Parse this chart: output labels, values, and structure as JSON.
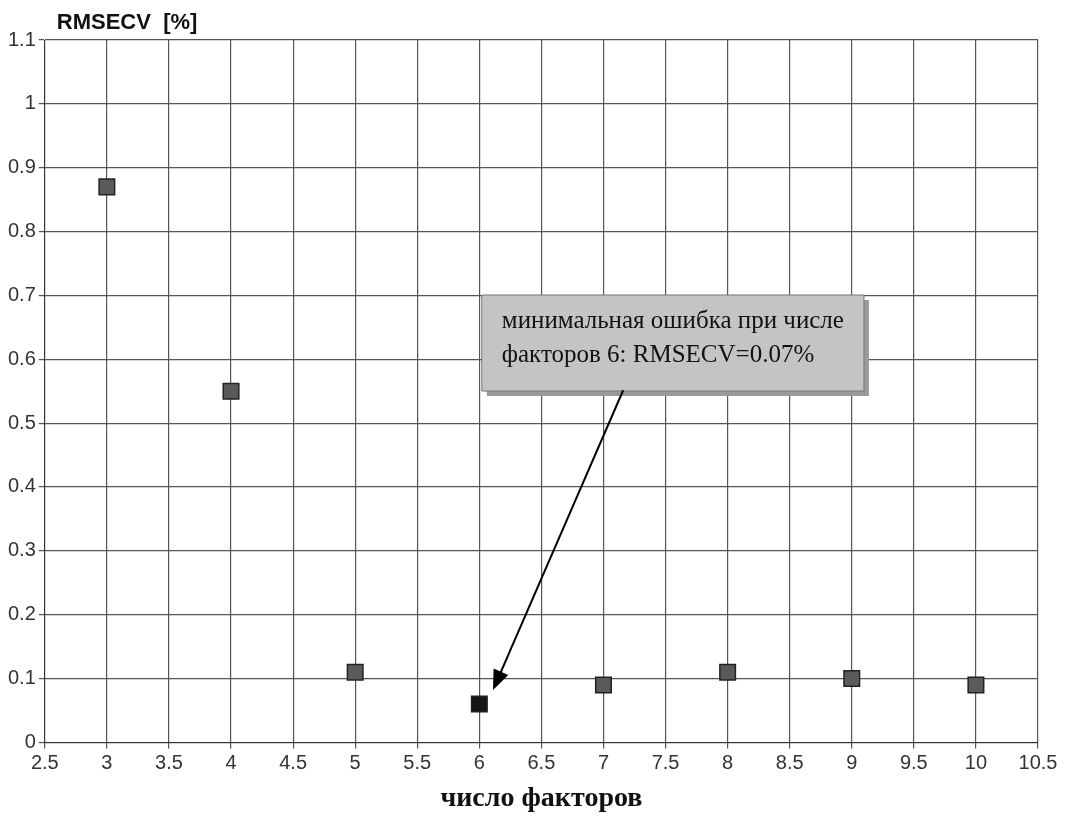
{
  "chart_data": {
    "type": "scatter",
    "ylabel": "RMSECV  [%]",
    "xlabel": "число факторов",
    "x": [
      3,
      4,
      5,
      6,
      7,
      8,
      9,
      10
    ],
    "values": [
      0.87,
      0.55,
      0.11,
      0.06,
      0.09,
      0.11,
      0.1,
      0.09
    ],
    "colors": [
      "#5a5a5a",
      "#5a5a5a",
      "#5a5a5a",
      "#141414",
      "#5a5a5a",
      "#5a5a5a",
      "#5a5a5a",
      "#5a5a5a"
    ],
    "xlim": [
      2.5,
      10.5
    ],
    "xticks": [
      2.5,
      3,
      3.5,
      4,
      4.5,
      5,
      5.5,
      6,
      6.5,
      7,
      7.5,
      8,
      8.5,
      9,
      9.5,
      10,
      10.5
    ],
    "ylim": [
      0,
      1.1
    ],
    "yticks": [
      0,
      0.1,
      0.2,
      0.3,
      0.4,
      0.5,
      0.6,
      0.7,
      0.8,
      0.9,
      1,
      1.1
    ],
    "grid": true,
    "marker": "square",
    "annotations": [
      "минимальная ошибка при числе факторов 6: RMSECV=0.07%"
    ]
  }
}
